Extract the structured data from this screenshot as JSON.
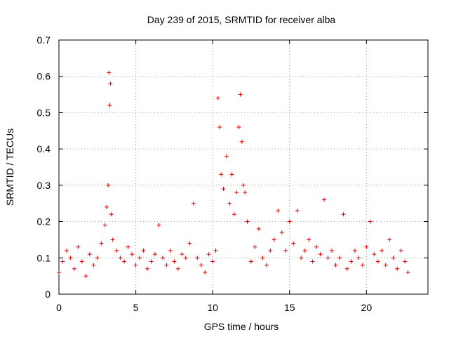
{
  "chart_data": {
    "type": "scatter",
    "title": "Day 239 of 2015, SRMTID for receiver alba",
    "xlabel": "GPS time / hours",
    "ylabel": "SRMTID / TECUs",
    "xlim": [
      0,
      24
    ],
    "ylim": [
      0,
      0.7
    ],
    "xticks": [
      0,
      5,
      10,
      15,
      20
    ],
    "xtick_labels": [
      "0",
      "5",
      "10",
      "15",
      "20"
    ],
    "yticks": [
      0,
      0.1,
      0.2,
      0.3,
      0.4,
      0.5,
      0.6,
      0.7
    ],
    "ytick_labels": [
      "0",
      "0.1",
      "0.2",
      "0.3",
      "0.4",
      "0.5",
      "0.6",
      "0.7"
    ],
    "grid": true,
    "marker": "+",
    "color": "#e00000",
    "series": [
      {
        "name": "SRMTID",
        "x": [
          0.0,
          0.25,
          0.5,
          0.75,
          1.0,
          1.25,
          1.5,
          1.75,
          2.0,
          2.25,
          2.5,
          2.75,
          3.0,
          3.1,
          3.2,
          3.25,
          3.3,
          3.35,
          3.4,
          3.5,
          3.75,
          4.0,
          4.25,
          4.5,
          4.75,
          5.0,
          5.25,
          5.5,
          5.75,
          6.0,
          6.25,
          6.5,
          6.75,
          7.0,
          7.25,
          7.5,
          7.75,
          8.0,
          8.25,
          8.5,
          8.75,
          9.0,
          9.25,
          9.5,
          9.75,
          10.0,
          10.2,
          10.35,
          10.45,
          10.55,
          10.7,
          10.9,
          11.1,
          11.25,
          11.4,
          11.55,
          11.7,
          11.8,
          11.9,
          12.0,
          12.1,
          12.25,
          12.5,
          12.75,
          13.0,
          13.25,
          13.5,
          13.75,
          14.0,
          14.25,
          14.5,
          14.75,
          15.0,
          15.25,
          15.5,
          15.75,
          16.0,
          16.25,
          16.5,
          16.75,
          17.0,
          17.25,
          17.5,
          17.75,
          18.0,
          18.25,
          18.5,
          18.75,
          19.0,
          19.25,
          19.5,
          19.75,
          20.0,
          20.25,
          20.5,
          20.75,
          21.0,
          21.25,
          21.5,
          21.75,
          22.0,
          22.25,
          22.5,
          22.7
        ],
        "y": [
          0.06,
          0.09,
          0.12,
          0.1,
          0.07,
          0.13,
          0.09,
          0.05,
          0.11,
          0.08,
          0.1,
          0.14,
          0.19,
          0.24,
          0.3,
          0.61,
          0.52,
          0.58,
          0.22,
          0.15,
          0.12,
          0.1,
          0.09,
          0.13,
          0.11,
          0.08,
          0.1,
          0.12,
          0.07,
          0.09,
          0.11,
          0.19,
          0.1,
          0.08,
          0.12,
          0.09,
          0.07,
          0.11,
          0.1,
          0.14,
          0.25,
          0.1,
          0.08,
          0.06,
          0.11,
          0.09,
          0.12,
          0.54,
          0.46,
          0.33,
          0.29,
          0.38,
          0.25,
          0.33,
          0.22,
          0.28,
          0.46,
          0.55,
          0.42,
          0.3,
          0.28,
          0.2,
          0.09,
          0.13,
          0.18,
          0.1,
          0.08,
          0.12,
          0.15,
          0.23,
          0.17,
          0.12,
          0.2,
          0.14,
          0.23,
          0.1,
          0.12,
          0.15,
          0.09,
          0.13,
          0.11,
          0.26,
          0.1,
          0.12,
          0.08,
          0.1,
          0.22,
          0.07,
          0.09,
          0.12,
          0.1,
          0.08,
          0.13,
          0.2,
          0.11,
          0.09,
          0.12,
          0.08,
          0.15,
          0.1,
          0.07,
          0.12,
          0.09,
          0.06
        ]
      }
    ]
  }
}
